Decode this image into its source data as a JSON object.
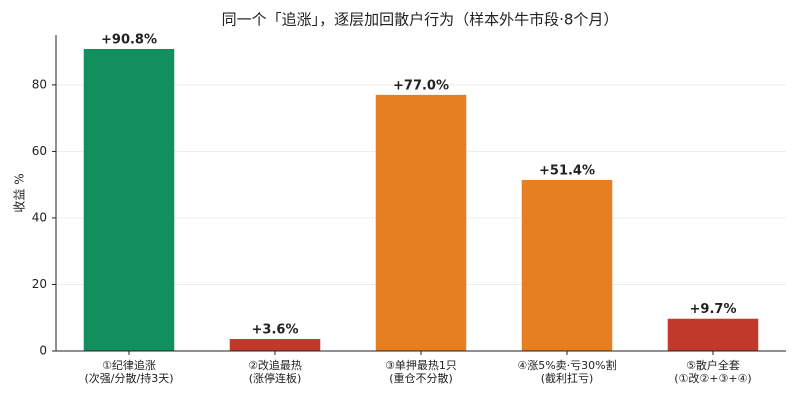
{
  "chart_data": {
    "type": "bar",
    "title": "同一个「追涨」，逐层加回散户行为（样本外牛市段·8个月）",
    "y_label": "收益 %",
    "categories": [
      [
        "①纪律追涨",
        "(次强/分散/持3天)"
      ],
      [
        "②改追最热",
        "(涨停连板)"
      ],
      [
        "③单押最热1只",
        "(重仓不分散)"
      ],
      [
        "④涨5%卖·亏30%割",
        "(截利扛亏)"
      ],
      [
        "⑤散户全套",
        "(①改②+③+④)"
      ]
    ],
    "values": [
      90.8,
      3.6,
      77.0,
      51.4,
      9.7
    ],
    "value_labels": [
      "+90.8%",
      "+3.6%",
      "+77.0%",
      "+51.4%",
      "+9.7%"
    ],
    "colors": [
      "#118f5e",
      "#c0392b",
      "#e67e22",
      "#e67e22",
      "#c0392b"
    ],
    "ylim": [
      0,
      95
    ],
    "yticks": [
      0,
      20,
      40,
      60,
      80
    ],
    "grid": true
  }
}
